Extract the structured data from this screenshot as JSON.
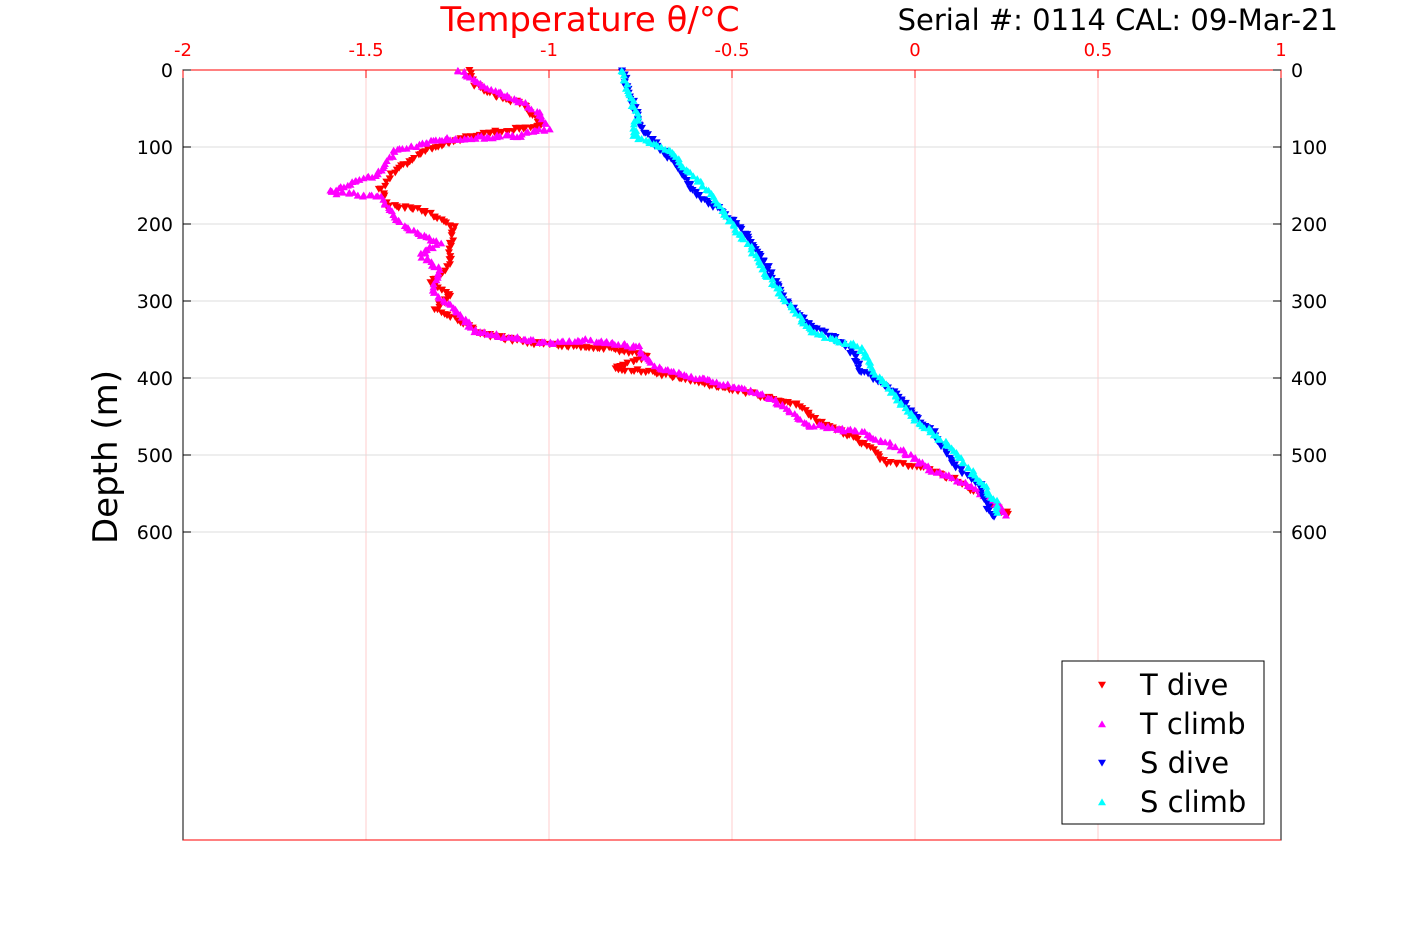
{
  "chart_data": {
    "type": "scatter",
    "title": "Temperature θ/°C",
    "subtitle": "Serial #: 0114  CAL: 09-Mar-21",
    "xlabel": "Temperature θ/°C",
    "ylabel": "Depth (m)",
    "xlim": [
      -2,
      1
    ],
    "ylim": [
      0,
      1000
    ],
    "x_ticks": [
      "-2",
      "-1.5",
      "-1",
      "-0.5",
      "0",
      "0.5",
      "1"
    ],
    "x_tick_values": [
      -2,
      -1.5,
      -1,
      -0.5,
      0,
      0.5,
      1
    ],
    "y_ticks": [
      "0",
      "100",
      "200",
      "300",
      "400",
      "500",
      "600"
    ],
    "y_tick_values": [
      0,
      100,
      200,
      300,
      400,
      500,
      600
    ],
    "grid": true,
    "legend_position": "bottom-right",
    "colors": {
      "axis_top": "#ff0000",
      "grid_x": "#ffcccc",
      "grid_y": "#dddddd"
    },
    "series": [
      {
        "name": "T dive",
        "color": "#ff0000",
        "marker": "triangle-down",
        "points": [
          [
            -1.22,
            0
          ],
          [
            -1.2,
            20
          ],
          [
            -1.15,
            33
          ],
          [
            -1.07,
            46
          ],
          [
            -1.02,
            72
          ],
          [
            -1.2,
            85
          ],
          [
            -1.33,
            104
          ],
          [
            -1.42,
            130
          ],
          [
            -1.46,
            156
          ],
          [
            -1.44,
            175
          ],
          [
            -1.35,
            182
          ],
          [
            -1.26,
            205
          ],
          [
            -1.27,
            240
          ],
          [
            -1.28,
            260
          ],
          [
            -1.32,
            275
          ],
          [
            -1.27,
            293
          ],
          [
            -1.31,
            310
          ],
          [
            -1.23,
            330
          ],
          [
            -1.18,
            343
          ],
          [
            -1.05,
            355
          ],
          [
            -0.84,
            362
          ],
          [
            -0.73,
            370
          ],
          [
            -0.82,
            388
          ],
          [
            -0.73,
            392
          ],
          [
            -0.6,
            405
          ],
          [
            -0.45,
            420
          ],
          [
            -0.32,
            435
          ],
          [
            -0.27,
            455
          ],
          [
            -0.2,
            470
          ],
          [
            -0.12,
            490
          ],
          [
            -0.08,
            510
          ],
          [
            0.02,
            515
          ],
          [
            0.12,
            535
          ],
          [
            0.19,
            555
          ],
          [
            0.26,
            580
          ]
        ]
      },
      {
        "name": "T climb",
        "color": "#ff00ff",
        "marker": "triangle-up",
        "points": [
          [
            -1.25,
            0
          ],
          [
            -1.18,
            20
          ],
          [
            -1.08,
            40
          ],
          [
            -1.03,
            55
          ],
          [
            -1.0,
            75
          ],
          [
            -1.08,
            85
          ],
          [
            -1.3,
            90
          ],
          [
            -1.42,
            105
          ],
          [
            -1.47,
            135
          ],
          [
            -1.6,
            158
          ],
          [
            -1.46,
            165
          ],
          [
            -1.42,
            195
          ],
          [
            -1.35,
            215
          ],
          [
            -1.3,
            225
          ],
          [
            -1.35,
            240
          ],
          [
            -1.3,
            260
          ],
          [
            -1.32,
            285
          ],
          [
            -1.26,
            310
          ],
          [
            -1.2,
            340
          ],
          [
            -1.0,
            355
          ],
          [
            -0.9,
            350
          ],
          [
            -0.75,
            360
          ],
          [
            -0.74,
            375
          ],
          [
            -0.68,
            390
          ],
          [
            -0.55,
            405
          ],
          [
            -0.42,
            420
          ],
          [
            -0.35,
            440
          ],
          [
            -0.3,
            460
          ],
          [
            -0.15,
            470
          ],
          [
            -0.05,
            490
          ],
          [
            0.05,
            520
          ],
          [
            0.15,
            540
          ],
          [
            0.24,
            570
          ],
          [
            0.25,
            580
          ]
        ]
      },
      {
        "name": "S dive",
        "color": "#0000ff",
        "marker": "triangle-down",
        "points": [
          [
            -0.8,
            0
          ],
          [
            -0.78,
            30
          ],
          [
            -0.76,
            60
          ],
          [
            -0.74,
            80
          ],
          [
            -0.7,
            100
          ],
          [
            -0.64,
            130
          ],
          [
            -0.6,
            160
          ],
          [
            -0.52,
            185
          ],
          [
            -0.45,
            220
          ],
          [
            -0.4,
            260
          ],
          [
            -0.35,
            300
          ],
          [
            -0.32,
            320
          ],
          [
            -0.25,
            340
          ],
          [
            -0.18,
            360
          ],
          [
            -0.15,
            390
          ],
          [
            -0.05,
            420
          ],
          [
            -0.02,
            440
          ],
          [
            0.05,
            470
          ],
          [
            0.1,
            510
          ],
          [
            0.18,
            540
          ],
          [
            0.2,
            570
          ],
          [
            0.22,
            585
          ]
        ]
      },
      {
        "name": "S climb",
        "color": "#00ffff",
        "marker": "triangle-up",
        "points": [
          [
            -0.8,
            0
          ],
          [
            -0.78,
            30
          ],
          [
            -0.76,
            60
          ],
          [
            -0.77,
            85
          ],
          [
            -0.67,
            105
          ],
          [
            -0.6,
            140
          ],
          [
            -0.55,
            165
          ],
          [
            -0.5,
            200
          ],
          [
            -0.45,
            230
          ],
          [
            -0.4,
            270
          ],
          [
            -0.35,
            300
          ],
          [
            -0.28,
            340
          ],
          [
            -0.15,
            360
          ],
          [
            -0.12,
            385
          ],
          [
            -0.05,
            425
          ],
          [
            0.0,
            455
          ],
          [
            0.1,
            490
          ],
          [
            0.17,
            530
          ],
          [
            0.22,
            560
          ],
          [
            0.23,
            580
          ]
        ]
      }
    ]
  }
}
